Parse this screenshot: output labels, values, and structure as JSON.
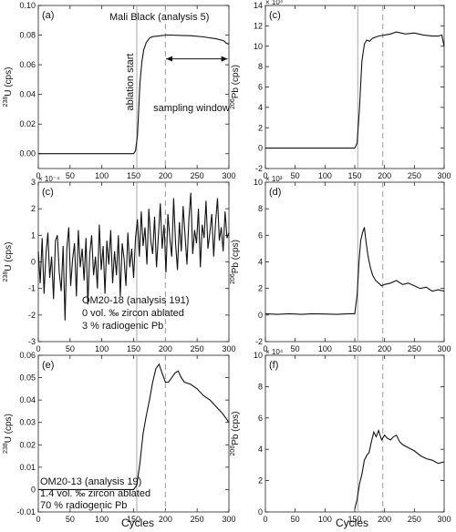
{
  "figure": {
    "x_axis_label": "Cycles"
  },
  "chart_data": [
    {
      "panel_label": "(a)",
      "type": "line",
      "ylabel": "238U (cps)",
      "ylabel_main": "U (cps)",
      "ylabel_sup": "238",
      "xlim": [
        0,
        300
      ],
      "ylim": [
        -0.01,
        0.1
      ],
      "xticks": [
        0,
        50,
        100,
        150,
        200,
        250,
        300
      ],
      "xtick_labels": [
        "0",
        "50",
        "100",
        "150",
        "200",
        "250",
        "300"
      ],
      "yticks": [
        0,
        0.02,
        0.04,
        0.06,
        0.08,
        0.1
      ],
      "ytick_labels": [
        "0.00",
        "0.02",
        "0.04",
        "0.06",
        "0.08",
        "0.10"
      ],
      "exponent": "",
      "vlines": [
        {
          "x": 155,
          "style": "solid"
        },
        {
          "x": 200,
          "style": "dashed"
        }
      ],
      "annotations": [
        "Mali Black (analysis 5)",
        "ablation start",
        "sampling window"
      ],
      "series": [
        {
          "x": [
            0,
            150,
            153,
            156,
            158,
            160,
            163,
            166,
            170,
            175,
            180,
            190,
            200,
            210,
            225,
            240,
            260,
            280,
            292,
            296,
            300
          ],
          "y": [
            0,
            0,
            0.002,
            0.012,
            0.03,
            0.048,
            0.062,
            0.07,
            0.075,
            0.078,
            0.079,
            0.0795,
            0.08,
            0.08,
            0.0798,
            0.0796,
            0.0788,
            0.0775,
            0.0762,
            0.0745,
            0.074
          ]
        }
      ]
    },
    {
      "panel_label": "(c)",
      "type": "line",
      "ylabel": "206Pb (cps)",
      "ylabel_main": "Pb (cps)",
      "ylabel_sup": "206",
      "xlim": [
        0,
        300
      ],
      "ylim": [
        -2,
        14
      ],
      "xticks": [
        0,
        50,
        100,
        150,
        200,
        250,
        300
      ],
      "xtick_labels": [
        "0",
        "50",
        "100",
        "150",
        "200",
        "250",
        "300"
      ],
      "yticks": [
        -2,
        0,
        2,
        4,
        6,
        8,
        10,
        12,
        14
      ],
      "ytick_labels": [
        "-2",
        "0",
        "2",
        "4",
        "6",
        "8",
        "10",
        "12",
        "14"
      ],
      "exponent": "× 10⁴",
      "vlines": [
        {
          "x": 155,
          "style": "solid"
        },
        {
          "x": 197,
          "style": "dashed"
        }
      ],
      "annotations": [],
      "series": [
        {
          "x": [
            0,
            150,
            154,
            158,
            162,
            166,
            170,
            175,
            180,
            190,
            200,
            210,
            220,
            235,
            250,
            265,
            280,
            290,
            296,
            300
          ],
          "y": [
            0,
            0,
            0.5,
            4,
            8.5,
            10.2,
            10.6,
            10.5,
            10.8,
            11,
            11.1,
            11.2,
            11.4,
            11.2,
            11.3,
            11.1,
            11,
            11,
            11.1,
            10
          ]
        }
      ]
    },
    {
      "panel_label": "(c)",
      "type": "line",
      "ylabel": "238U (cps)",
      "ylabel_main": "U (cps)",
      "ylabel_sup": "238",
      "xlim": [
        0,
        300
      ],
      "ylim": [
        -3,
        3
      ],
      "xticks": [
        0,
        50,
        100,
        150,
        200,
        250,
        300
      ],
      "xtick_labels": [
        "0",
        "50",
        "100",
        "150",
        "200",
        "250",
        "300"
      ],
      "yticks": [
        -3,
        -2,
        -1,
        0,
        1,
        2,
        3
      ],
      "ytick_labels": [
        "-3",
        "-2",
        "-1",
        "0",
        "1",
        "2",
        "3"
      ],
      "exponent": "× 10⁻⁴",
      "vlines": [
        {
          "x": 155,
          "style": "solid"
        },
        {
          "x": 200,
          "style": "dashed"
        }
      ],
      "annotations": [
        "OM20-18 (analysis 191)",
        "0 vol. ‰ zircon ablated",
        "3 % radiogenic Pb"
      ],
      "series": [
        {
          "x": [
            0,
            3,
            6,
            9,
            12,
            15,
            18,
            21,
            24,
            27,
            30,
            33,
            36,
            39,
            42,
            45,
            48,
            51,
            54,
            57,
            60,
            63,
            66,
            69,
            72,
            75,
            78,
            81,
            84,
            87,
            90,
            93,
            96,
            99,
            102,
            105,
            108,
            111,
            114,
            117,
            120,
            123,
            126,
            129,
            132,
            135,
            138,
            141,
            144,
            147,
            150,
            153,
            156,
            159,
            162,
            165,
            168,
            171,
            174,
            177,
            180,
            183,
            186,
            189,
            192,
            195,
            198,
            201,
            204,
            207,
            210,
            213,
            216,
            219,
            222,
            225,
            228,
            231,
            234,
            237,
            240,
            243,
            246,
            249,
            252,
            255,
            258,
            261,
            264,
            267,
            270,
            273,
            276,
            279,
            282,
            285,
            288,
            291,
            294,
            297,
            300
          ],
          "y": [
            0.4,
            -0.8,
            0.9,
            -1.2,
            0.3,
            1.1,
            -0.6,
            0.2,
            -1.4,
            0.8,
            1.0,
            -0.4,
            -1.1,
            0.6,
            -2.2,
            0.5,
            1.3,
            -0.9,
            0.1,
            0.7,
            -1.3,
            1.2,
            -0.2,
            0.5,
            -0.7,
            0.9,
            -1.6,
            0.3,
            1.0,
            -0.5,
            0.2,
            -1.0,
            1.4,
            -0.3,
            0.6,
            -1.2,
            0.8,
            -0.1,
            1.2,
            -0.8,
            0.4,
            -0.5,
            1.0,
            -1.3,
            0.7,
            0.1,
            -0.9,
            1.1,
            -0.2,
            0.5,
            -0.6,
            0.9,
            1.6,
            0.2,
            1.9,
            0.6,
            1.3,
            -0.1,
            2.0,
            0.8,
            0.3,
            1.7,
            -0.2,
            1.0,
            2.2,
            0.5,
            1.4,
            -0.4,
            1.8,
            0.9,
            0.2,
            2.4,
            0.7,
            -0.3,
            1.5,
            0.4,
            2.1,
            1.0,
            -0.1,
            1.6,
            2.6,
            0.3,
            1.2,
            0.7,
            2.0,
            -0.2,
            1.4,
            0.9,
            2.3,
            0.5,
            1.1,
            1.8,
            0.2,
            1.5,
            2.4,
            0.8,
            1.3,
            0.4,
            1.9,
            0.9,
            1.1
          ]
        }
      ]
    },
    {
      "panel_label": "(d)",
      "type": "line",
      "ylabel": "206Pb (cps)",
      "ylabel_main": "Pb (cps)",
      "ylabel_sup": "206",
      "xlim": [
        0,
        300
      ],
      "ylim": [
        -2,
        10
      ],
      "xticks": [
        0,
        50,
        100,
        150,
        200,
        250,
        300
      ],
      "xtick_labels": [
        "0",
        "50",
        "100",
        "150",
        "200",
        "250",
        "300"
      ],
      "yticks": [
        -2,
        0,
        2,
        4,
        6,
        8,
        10
      ],
      "ytick_labels": [
        "-2",
        "0",
        "2",
        "4",
        "6",
        "8",
        "10"
      ],
      "exponent": "× 10³",
      "vlines": [
        {
          "x": 155,
          "style": "solid"
        },
        {
          "x": 197,
          "style": "dashed"
        }
      ],
      "annotations": [],
      "series": [
        {
          "x": [
            0,
            20,
            40,
            60,
            80,
            100,
            120,
            140,
            150,
            154,
            157,
            160,
            163,
            166,
            169,
            172,
            176,
            180,
            185,
            190,
            195,
            200,
            210,
            220,
            230,
            240,
            250,
            260,
            270,
            280,
            290,
            300
          ],
          "y": [
            0.1,
            0.05,
            0.1,
            0.05,
            0.1,
            0.08,
            0.05,
            0.1,
            0.1,
            1.5,
            4.0,
            5.6,
            6.2,
            6.6,
            5.5,
            4.5,
            3.6,
            3.0,
            2.6,
            2.4,
            2.2,
            2.3,
            2.4,
            2.6,
            2.3,
            2.4,
            2.2,
            2.0,
            2.1,
            1.8,
            1.9,
            1.8
          ]
        }
      ]
    },
    {
      "panel_label": "(e)",
      "type": "line",
      "ylabel": "238U (cps)",
      "ylabel_main": "U (cps)",
      "ylabel_sup": "238",
      "xlim": [
        0,
        300
      ],
      "ylim": [
        -0.01,
        0.06
      ],
      "xticks": [
        0,
        50,
        100,
        150,
        200,
        250,
        300
      ],
      "xtick_labels": [
        "0",
        "50",
        "100",
        "150",
        "200",
        "250",
        "300"
      ],
      "yticks": [
        -0.01,
        0,
        0.01,
        0.02,
        0.03,
        0.04,
        0.05,
        0.06
      ],
      "ytick_labels": [
        "-0.01",
        "0",
        "0.01",
        "0.02",
        "0.03",
        "0.04",
        "0.05",
        "0.06"
      ],
      "exponent": "",
      "vlines": [
        {
          "x": 155,
          "style": "solid"
        },
        {
          "x": 200,
          "style": "dashed"
        }
      ],
      "annotations": [
        "OM20-13 (analysis 19)",
        "1.4 vol. ‰ zircon ablated",
        "70 % radiogenic Pb"
      ],
      "series": [
        {
          "x": [
            0,
            150,
            155,
            160,
            165,
            170,
            175,
            180,
            185,
            190,
            195,
            200,
            205,
            210,
            215,
            220,
            225,
            230,
            240,
            250,
            260,
            270,
            280,
            290,
            300
          ],
          "y": [
            0,
            0,
            0.002,
            0.012,
            0.025,
            0.033,
            0.04,
            0.048,
            0.054,
            0.056,
            0.052,
            0.048,
            0.048,
            0.05,
            0.052,
            0.053,
            0.05,
            0.048,
            0.047,
            0.045,
            0.042,
            0.04,
            0.037,
            0.034,
            0.03
          ]
        }
      ]
    },
    {
      "panel_label": "(f)",
      "type": "line",
      "ylabel": "206Pb (cps)",
      "ylabel_main": "Pb (cps)",
      "ylabel_sup": "206",
      "xlim": [
        0,
        300
      ],
      "ylim": [
        0,
        10
      ],
      "xticks": [
        0,
        50,
        100,
        150,
        200,
        250,
        300
      ],
      "xtick_labels": [
        "0",
        "50",
        "100",
        "150",
        "200",
        "250",
        "300"
      ],
      "yticks": [
        0,
        2,
        4,
        6,
        8,
        10
      ],
      "ytick_labels": [
        "0",
        "2",
        "4",
        "6",
        "8",
        "10"
      ],
      "exponent": "× 10⁴",
      "vlines": [
        {
          "x": 155,
          "style": "solid"
        },
        {
          "x": 197,
          "style": "dashed"
        }
      ],
      "annotations": [],
      "series": [
        {
          "x": [
            150,
            154,
            158,
            162,
            166,
            170,
            174,
            178,
            182,
            186,
            190,
            195,
            200,
            205,
            210,
            215,
            220,
            225,
            230,
            240,
            250,
            260,
            270,
            280,
            290,
            300
          ],
          "y": [
            0.2,
            0.8,
            1.8,
            2.4,
            3.3,
            3.6,
            3.8,
            4.5,
            5.1,
            4.8,
            5.2,
            4.6,
            4.9,
            4.7,
            4.6,
            4.8,
            4.9,
            4.5,
            4.3,
            4.1,
            3.9,
            3.6,
            3.4,
            3.3,
            3.1,
            3.2
          ]
        }
      ]
    }
  ]
}
